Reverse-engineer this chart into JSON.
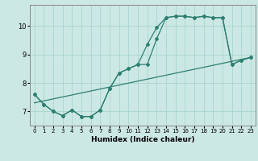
{
  "xlabel": "Humidex (Indice chaleur)",
  "bg_color": "#cce8e4",
  "line_color": "#2d7f72",
  "grid_color": "#a8d5ce",
  "xlim": [
    -0.5,
    23.5
  ],
  "ylim": [
    6.5,
    10.75
  ],
  "xticks": [
    0,
    1,
    2,
    3,
    4,
    5,
    6,
    7,
    8,
    9,
    10,
    11,
    12,
    13,
    14,
    15,
    16,
    17,
    18,
    19,
    20,
    21,
    22,
    23
  ],
  "yticks": [
    7,
    8,
    9,
    10
  ],
  "line1_x": [
    0,
    1,
    2,
    3,
    4,
    5,
    6,
    7,
    8,
    9,
    10,
    11,
    12,
    13,
    14,
    15,
    16,
    17,
    18,
    19,
    20,
    21,
    22,
    23
  ],
  "line1_y": [
    7.6,
    7.25,
    7.0,
    6.85,
    7.05,
    6.82,
    6.82,
    7.05,
    7.8,
    8.35,
    8.5,
    8.65,
    8.65,
    9.55,
    10.3,
    10.35,
    10.35,
    10.3,
    10.35,
    10.3,
    10.3,
    8.65,
    8.8,
    8.9
  ],
  "line2_x": [
    0,
    1,
    2,
    3,
    4,
    5,
    6,
    7,
    8,
    9,
    10,
    11,
    12,
    13,
    14,
    15,
    16,
    17,
    18,
    19,
    20,
    21,
    22,
    23
  ],
  "line2_y": [
    7.6,
    7.25,
    7.0,
    6.85,
    7.05,
    6.82,
    6.82,
    7.05,
    7.8,
    8.35,
    8.5,
    8.65,
    9.35,
    9.95,
    10.3,
    10.35,
    10.35,
    10.3,
    10.35,
    10.3,
    10.3,
    8.65,
    8.8,
    8.9
  ],
  "line3_x": [
    0,
    23
  ],
  "line3_y": [
    7.3,
    8.9
  ]
}
